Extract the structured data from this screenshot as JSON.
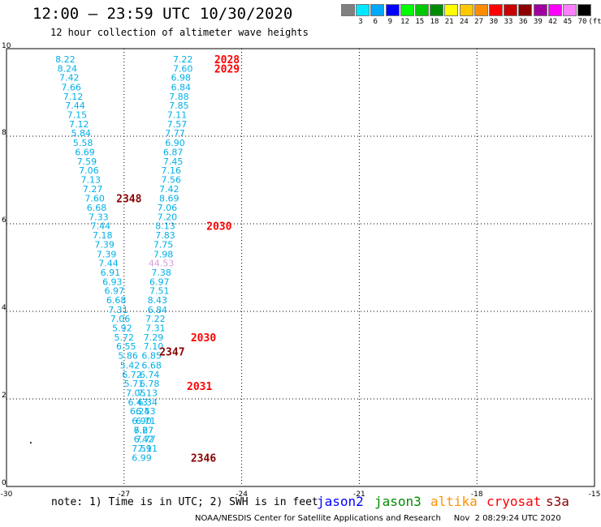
{
  "header": {
    "title": "12:00 – 23:59 UTC 10/30/2020",
    "subtitle": "12 hour collection of altimeter wave heights"
  },
  "color_scale": {
    "labels": [
      "3",
      "6",
      "9",
      "12",
      "15",
      "18",
      "21",
      "24",
      "27",
      "30",
      "33",
      "36",
      "39",
      "42",
      "45",
      "70",
      "(ft)"
    ],
    "colors": [
      "#808080",
      "#00e8ff",
      "#00a8ff",
      "#0000ff",
      "#00ff00",
      "#00c800",
      "#008c00",
      "#ffff00",
      "#ffc800",
      "#ff8c00",
      "#ff0000",
      "#c80000",
      "#8c0000",
      "#a000a0",
      "#ff00ff",
      "#ff80ff",
      "#000000"
    ]
  },
  "chart_data": {
    "type": "scatter",
    "xlim": [
      -30,
      -15
    ],
    "ylim": [
      0,
      10
    ],
    "x_ticks": [
      "-30",
      "-27",
      "-24",
      "-21",
      "-18",
      "-15"
    ],
    "y_ticks": [
      "0",
      "2",
      "4",
      "6",
      "8",
      "10"
    ],
    "grid": true,
    "series": [
      {
        "track": "west",
        "color": "#00b0e8",
        "points": [
          {
            "x": -28.5,
            "y": 9.76,
            "v": "8.22"
          },
          {
            "x": -28.45,
            "y": 9.55,
            "v": "8.24"
          },
          {
            "x": -28.4,
            "y": 9.34,
            "v": "7.42"
          },
          {
            "x": -28.35,
            "y": 9.12,
            "v": "7.66"
          },
          {
            "x": -28.3,
            "y": 8.91,
            "v": "7.12"
          },
          {
            "x": -28.25,
            "y": 8.7,
            "v": "7.44"
          },
          {
            "x": -28.2,
            "y": 8.49,
            "v": "7.15"
          },
          {
            "x": -28.15,
            "y": 8.28,
            "v": "7.12"
          },
          {
            "x": -28.1,
            "y": 8.07,
            "v": "5.84"
          },
          {
            "x": -28.05,
            "y": 7.85,
            "v": "5.58"
          },
          {
            "x": -28.0,
            "y": 7.64,
            "v": "6.69"
          },
          {
            "x": -27.95,
            "y": 7.43,
            "v": "7.59"
          },
          {
            "x": -27.9,
            "y": 7.22,
            "v": "7.06"
          },
          {
            "x": -27.85,
            "y": 7.01,
            "v": "7.13"
          },
          {
            "x": -27.8,
            "y": 6.8,
            "v": "7.27"
          },
          {
            "x": -27.75,
            "y": 6.58,
            "v": "7.60"
          },
          {
            "x": -27.7,
            "y": 6.37,
            "v": "6.68"
          },
          {
            "x": -27.65,
            "y": 6.16,
            "v": "7.33"
          },
          {
            "x": -27.6,
            "y": 5.95,
            "v": "7.44"
          },
          {
            "x": -27.55,
            "y": 5.74,
            "v": "7.18"
          },
          {
            "x": -27.5,
            "y": 5.53,
            "v": "7.39"
          },
          {
            "x": -27.45,
            "y": 5.31,
            "v": "7.39"
          },
          {
            "x": -27.4,
            "y": 5.1,
            "v": "7.44"
          },
          {
            "x": -27.35,
            "y": 4.89,
            "v": "6.91"
          },
          {
            "x": -27.3,
            "y": 4.68,
            "v": "6.93"
          },
          {
            "x": -27.25,
            "y": 4.47,
            "v": "6.97"
          },
          {
            "x": -27.2,
            "y": 4.26,
            "v": "6.68"
          },
          {
            "x": -27.15,
            "y": 4.04,
            "v": "7.31"
          },
          {
            "x": -27.1,
            "y": 3.83,
            "v": "7.06"
          },
          {
            "x": -27.05,
            "y": 3.62,
            "v": "5.92"
          },
          {
            "x": -27.0,
            "y": 3.41,
            "v": "5.72"
          },
          {
            "x": -26.95,
            "y": 3.2,
            "v": "6.55"
          },
          {
            "x": -26.9,
            "y": 2.99,
            "v": "5.86"
          },
          {
            "x": -26.85,
            "y": 2.77,
            "v": "5.42"
          },
          {
            "x": -26.8,
            "y": 2.56,
            "v": "6.72"
          },
          {
            "x": -26.75,
            "y": 2.35,
            "v": "5.71"
          },
          {
            "x": -26.7,
            "y": 2.14,
            "v": "7.05"
          },
          {
            "x": -26.65,
            "y": 1.93,
            "v": "6.43"
          },
          {
            "x": -26.6,
            "y": 1.72,
            "v": "6.24"
          },
          {
            "x": -26.55,
            "y": 1.5,
            "v": "6.90"
          },
          {
            "x": -26.5,
            "y": 1.29,
            "v": "7.27"
          },
          {
            "x": -26.45,
            "y": 1.08,
            "v": "7.77"
          },
          {
            "x": -26.4,
            "y": 0.87,
            "v": "7.11"
          }
        ]
      },
      {
        "track": "east",
        "color": "#00b0e8",
        "points": [
          {
            "x": -25.5,
            "y": 9.76,
            "v": "7.22"
          },
          {
            "x": -25.5,
            "y": 9.55,
            "v": "7.60"
          },
          {
            "x": -25.55,
            "y": 9.34,
            "v": "6.98"
          },
          {
            "x": -25.55,
            "y": 9.12,
            "v": "6.84"
          },
          {
            "x": -25.6,
            "y": 8.91,
            "v": "7.88"
          },
          {
            "x": -25.6,
            "y": 8.7,
            "v": "7.85"
          },
          {
            "x": -25.65,
            "y": 8.49,
            "v": "7.11"
          },
          {
            "x": -25.65,
            "y": 8.28,
            "v": "7.57"
          },
          {
            "x": -25.7,
            "y": 8.07,
            "v": "7.77"
          },
          {
            "x": -25.7,
            "y": 7.85,
            "v": "6.90"
          },
          {
            "x": -25.75,
            "y": 7.64,
            "v": "6.87"
          },
          {
            "x": -25.75,
            "y": 7.43,
            "v": "7.45"
          },
          {
            "x": -25.8,
            "y": 7.22,
            "v": "7.16"
          },
          {
            "x": -25.8,
            "y": 7.01,
            "v": "7.56"
          },
          {
            "x": -25.85,
            "y": 6.8,
            "v": "7.42"
          },
          {
            "x": -25.85,
            "y": 6.58,
            "v": "8.69"
          },
          {
            "x": -25.9,
            "y": 6.37,
            "v": "7.06"
          },
          {
            "x": -25.9,
            "y": 6.16,
            "v": "7.20"
          },
          {
            "x": -25.95,
            "y": 5.95,
            "v": "8.13"
          },
          {
            "x": -25.95,
            "y": 5.74,
            "v": "7.83"
          },
          {
            "x": -26.0,
            "y": 5.53,
            "v": "7.75"
          },
          {
            "x": -26.0,
            "y": 5.31,
            "v": "7.98"
          },
          {
            "x": -26.05,
            "y": 5.1,
            "v": "44.53",
            "color": "#d8a0d8"
          },
          {
            "x": -26.05,
            "y": 4.89,
            "v": "7.38"
          },
          {
            "x": -26.1,
            "y": 4.68,
            "v": "6.97"
          },
          {
            "x": -26.1,
            "y": 4.47,
            "v": "7.51"
          },
          {
            "x": -26.15,
            "y": 4.26,
            "v": "8.43"
          },
          {
            "x": -26.15,
            "y": 4.04,
            "v": "6.84"
          },
          {
            "x": -26.2,
            "y": 3.83,
            "v": "7.22"
          },
          {
            "x": -26.2,
            "y": 3.62,
            "v": "7.31"
          },
          {
            "x": -26.25,
            "y": 3.41,
            "v": "7.29"
          },
          {
            "x": -26.25,
            "y": 3.2,
            "v": "7.10"
          },
          {
            "x": -26.3,
            "y": 2.99,
            "v": "6.85"
          },
          {
            "x": -26.3,
            "y": 2.77,
            "v": "6.68"
          },
          {
            "x": -26.35,
            "y": 2.56,
            "v": "6.74"
          },
          {
            "x": -26.35,
            "y": 2.35,
            "v": "6.78"
          },
          {
            "x": -26.4,
            "y": 2.14,
            "v": "7.13"
          },
          {
            "x": -26.4,
            "y": 1.93,
            "v": "6.34"
          },
          {
            "x": -26.45,
            "y": 1.72,
            "v": "6.53"
          },
          {
            "x": -26.45,
            "y": 1.5,
            "v": "6.71"
          },
          {
            "x": -26.5,
            "y": 1.29,
            "v": "6.67"
          },
          {
            "x": -26.5,
            "y": 1.08,
            "v": "6.42"
          },
          {
            "x": -26.55,
            "y": 0.87,
            "v": "7.59"
          },
          {
            "x": -26.55,
            "y": 0.66,
            "v": "6.99"
          }
        ]
      }
    ],
    "time_labels": [
      {
        "x": -24.7,
        "y": 9.76,
        "label": "2028",
        "color": "#ff0000"
      },
      {
        "x": -24.7,
        "y": 9.55,
        "label": "2029",
        "color": "#ff0000"
      },
      {
        "x": -27.2,
        "y": 6.58,
        "label": "2348",
        "color": "#8b0000"
      },
      {
        "x": -24.9,
        "y": 5.95,
        "label": "2030",
        "color": "#ff0000"
      },
      {
        "x": -25.3,
        "y": 3.41,
        "label": "2030",
        "color": "#ff0000"
      },
      {
        "x": -26.1,
        "y": 3.08,
        "label": "2347",
        "color": "#8b0000"
      },
      {
        "x": -25.4,
        "y": 2.3,
        "label": "2031",
        "color": "#ff0000"
      },
      {
        "x": -25.3,
        "y": 0.66,
        "label": "2346",
        "color": "#8b0000"
      }
    ],
    "stray_marks": [
      {
        "x": -29.38,
        "y": 1.0
      }
    ]
  },
  "note": "note: 1) Time is in UTC; 2) SWH is in feet",
  "missions": [
    {
      "label": "jason2",
      "color": "#0000ff"
    },
    {
      "label": "jason3",
      "color": "#008c00"
    },
    {
      "label": "altika",
      "color": "#ff9000"
    },
    {
      "label": "cryosat",
      "color": "#ff0000"
    },
    {
      "label": "s3a",
      "color": "#8b0000"
    }
  ],
  "footer": "NOAA/NESDIS Center for Satellite Applications and Research     Nov  2 08:29:24 UTC 2020"
}
